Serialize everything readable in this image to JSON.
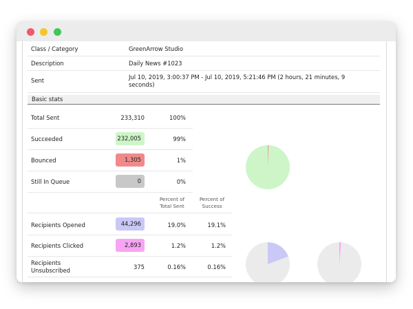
{
  "window": {
    "buttons": [
      {
        "name": "close",
        "color": "#f0566c"
      },
      {
        "name": "minimize",
        "color": "#f3c62b"
      },
      {
        "name": "zoom",
        "color": "#41c65b"
      }
    ]
  },
  "info_rows": [
    {
      "label": "Class / Category",
      "value": "GreenArrow Studio"
    },
    {
      "label": "Description",
      "value": "Daily News #1023"
    },
    {
      "label": "Sent",
      "value_line1": "Jul 10, 2019, 3:00:37 PM - Jul 10, 2019, 5:21:46 PM (2 hours, 21 minutes, 9",
      "value_line2": "seconds)"
    }
  ],
  "section_title": "Basic stats",
  "basic_stats": [
    {
      "label": "Total Sent",
      "count": "233,310",
      "pct": "100%",
      "badge": null
    },
    {
      "label": "Succeeded",
      "count": "232,005",
      "pct": "99%",
      "badge": "#cdf5c8"
    },
    {
      "label": "Bounced",
      "count": "1,305",
      "pct": "1%",
      "badge": "#f08a8a"
    },
    {
      "label": "Still In Queue",
      "count": "0",
      "pct": "0%",
      "badge": "#c8c8c8"
    }
  ],
  "engagement_headers": {
    "total_line1": "Percent of",
    "total_line2": "Total Sent",
    "success_line1": "Percent of",
    "success_line2": "Success"
  },
  "engagement": [
    {
      "label": "Recipients Opened",
      "count": "44,296",
      "pct_total": "19.0%",
      "pct_success": "19.1%",
      "badge": "#cac8f6"
    },
    {
      "label": "Recipients Clicked",
      "count": "2,893",
      "pct_total": "1.2%",
      "pct_success": "1.2%",
      "badge": "#f7a5f3"
    },
    {
      "label_line1": "Recipients",
      "label_line2": "Unsubscribed",
      "count": "375",
      "pct_total": "0.16%",
      "pct_success": "0.16%",
      "badge": null
    }
  ],
  "pies": [
    {
      "name": "delivery",
      "slice_fraction": 0.0056,
      "fill_color": "#cdf5c8",
      "slice_color": "#f08a8a"
    },
    {
      "name": "opened",
      "slice_fraction": 0.191,
      "fill_color": "#ebebeb",
      "slice_color": "#cac8f6"
    },
    {
      "name": "clicked",
      "slice_fraction": 0.012,
      "fill_color": "#ebebeb",
      "slice_color": "#f7a5f3"
    }
  ]
}
